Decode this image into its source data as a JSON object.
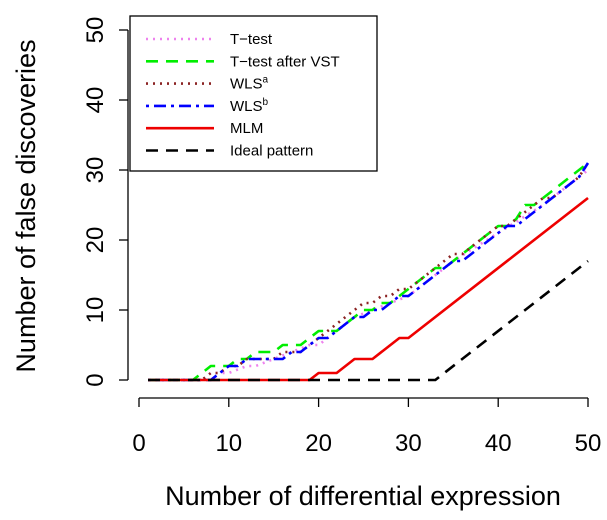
{
  "chart_data": {
    "type": "line",
    "xlabel": "Number of differential expression",
    "ylabel": "Number of false discoveries",
    "xlim": [
      0,
      50
    ],
    "ylim": [
      0,
      50
    ],
    "xticks": [
      "0",
      "10",
      "20",
      "30",
      "40",
      "50"
    ],
    "yticks": [
      "0",
      "10",
      "20",
      "30",
      "40",
      "50"
    ],
    "grid": false,
    "legend_position": "top-left",
    "series": [
      {
        "name": "T−test",
        "color": "#ee82ee",
        "dash": "dotted",
        "x": [
          1,
          7,
          8,
          9,
          10,
          12,
          13,
          15,
          17,
          19,
          20,
          22,
          24,
          26,
          28,
          30,
          32,
          35,
          40,
          45,
          50
        ],
        "y": [
          0,
          0,
          1,
          1,
          1,
          2,
          2,
          3,
          4,
          5,
          5,
          7,
          9,
          10,
          11,
          12,
          14,
          17,
          21,
          25,
          30
        ]
      },
      {
        "name": "T−test after VST",
        "color": "#00ee00",
        "dash": "dashed",
        "x": [
          1,
          6,
          7,
          8,
          9,
          10,
          11,
          12,
          13,
          15,
          16,
          17,
          18,
          19,
          20,
          21,
          22,
          23,
          24,
          25,
          26,
          27,
          28,
          29,
          30,
          31,
          32,
          33,
          34,
          35,
          36,
          37,
          38,
          39,
          40,
          41,
          42,
          43,
          44,
          45,
          46,
          47,
          48,
          49,
          50
        ],
        "y": [
          0,
          0,
          1,
          2,
          2,
          2,
          3,
          3,
          4,
          4,
          5,
          5,
          5,
          6,
          7,
          7,
          7,
          8,
          9,
          10,
          10,
          11,
          11,
          12,
          13,
          14,
          15,
          16,
          16,
          17,
          18,
          19,
          20,
          21,
          22,
          22,
          23,
          25,
          25,
          26,
          27,
          28,
          29,
          30,
          31
        ]
      },
      {
        "name": "WLS",
        "name_superscript": "a",
        "color": "#8b2323",
        "dash": "dotted",
        "x": [
          1,
          6,
          7,
          8,
          9,
          10,
          11,
          12,
          13,
          14,
          15,
          16,
          17,
          18,
          19,
          20,
          21,
          22,
          23,
          24,
          25,
          26,
          27,
          28,
          29,
          30,
          31,
          32,
          33,
          34,
          35,
          36,
          37,
          38,
          39,
          40,
          41,
          42,
          43,
          44,
          45,
          46,
          47,
          48,
          49,
          50
        ],
        "y": [
          0,
          0,
          0,
          1,
          1,
          2,
          2,
          3,
          3,
          3,
          3,
          4,
          4,
          4,
          5,
          6,
          7,
          8,
          9,
          10,
          11,
          11,
          12,
          12,
          13,
          13,
          14,
          15,
          16,
          17,
          18,
          18,
          19,
          20,
          21,
          22,
          22,
          23,
          24,
          25,
          26,
          26,
          27,
          28,
          29,
          31
        ]
      },
      {
        "name": "WLS",
        "name_superscript": "b",
        "color": "#0000ff",
        "dash": "dotdash",
        "x": [
          1,
          7,
          8,
          9,
          10,
          11,
          12,
          13,
          14,
          15,
          16,
          17,
          18,
          19,
          20,
          21,
          22,
          23,
          24,
          25,
          26,
          27,
          28,
          29,
          30,
          31,
          32,
          33,
          34,
          35,
          36,
          37,
          38,
          39,
          40,
          41,
          42,
          43,
          44,
          45,
          46,
          47,
          48,
          49,
          50
        ],
        "y": [
          0,
          0,
          0,
          1,
          2,
          2,
          3,
          3,
          3,
          3,
          3,
          4,
          4,
          5,
          6,
          6,
          7,
          8,
          9,
          9,
          10,
          10,
          11,
          12,
          12,
          13,
          14,
          15,
          16,
          17,
          17,
          18,
          19,
          20,
          21,
          22,
          22,
          23,
          24,
          25,
          26,
          27,
          28,
          29,
          31
        ]
      },
      {
        "name": "MLM",
        "color": "#ee0000",
        "dash": "solid",
        "x": [
          1,
          19,
          20,
          22,
          24,
          26,
          29,
          30,
          50
        ],
        "y": [
          0,
          0,
          1,
          1,
          3,
          3,
          6,
          6,
          26
        ]
      },
      {
        "name": "Ideal pattern",
        "color": "#000000",
        "dash": "dashed",
        "x": [
          1,
          33,
          50
        ],
        "y": [
          0,
          0,
          17
        ]
      }
    ]
  }
}
